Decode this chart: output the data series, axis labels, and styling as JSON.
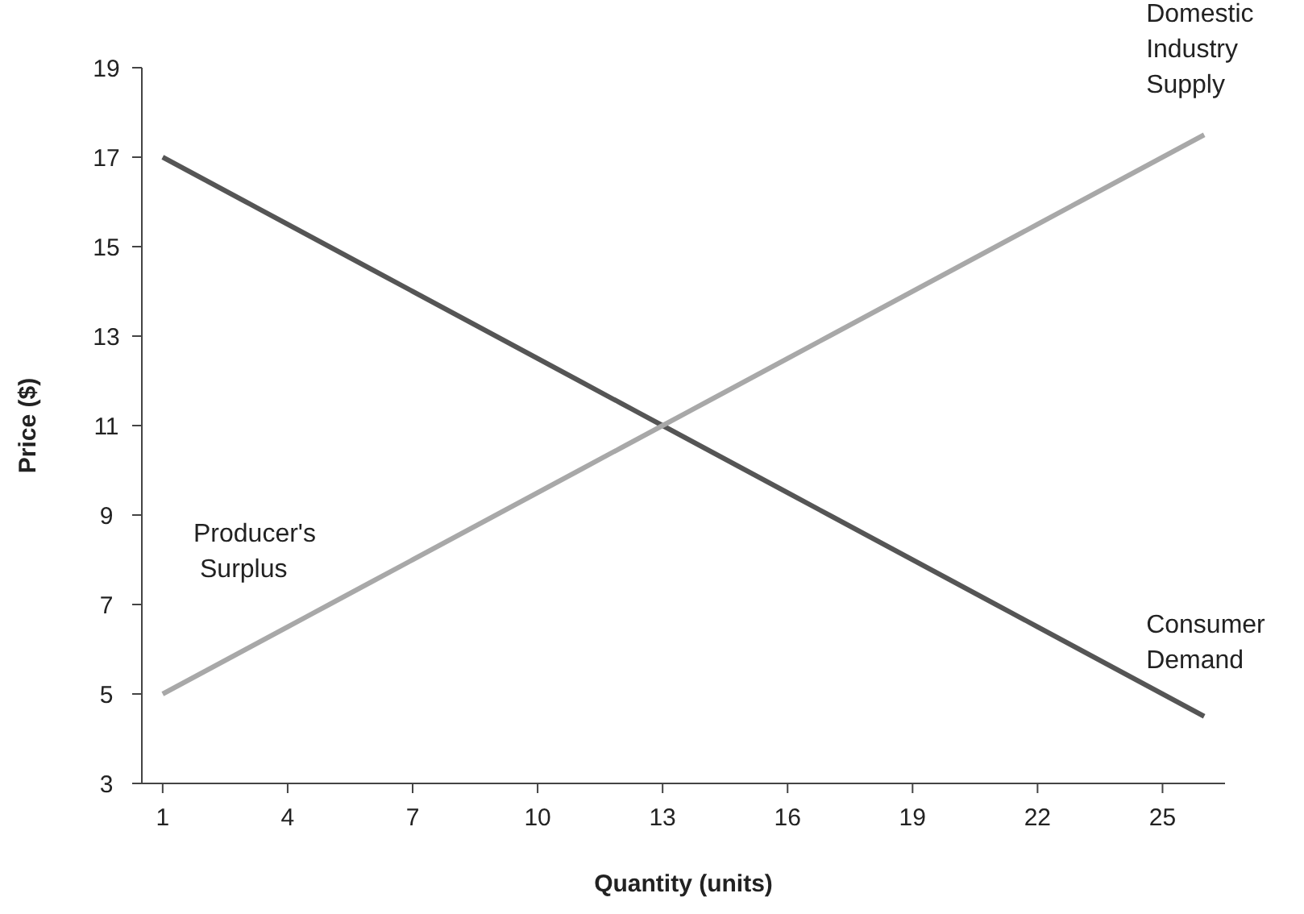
{
  "chart_data": {
    "type": "line",
    "xlabel": "Quantity (units)",
    "ylabel": "Price ($)",
    "categories": [
      "1",
      null,
      null,
      "4",
      null,
      null,
      "7",
      null,
      null,
      "10",
      null,
      null,
      "13",
      null,
      null,
      "16",
      null,
      null,
      "19",
      null,
      null,
      "22",
      null,
      null,
      "25",
      null
    ],
    "ylim": [
      3,
      19
    ],
    "yticks": [
      3,
      5,
      7,
      9,
      11,
      13,
      15,
      17,
      19
    ],
    "grid": false,
    "marker": "none",
    "line_style": "solid",
    "series": [
      {
        "name": "Consumer Demand",
        "color": "#555555",
        "values": [
          17,
          16.5,
          16,
          15.5,
          15,
          14.5,
          14,
          13.5,
          13,
          12.5,
          12,
          11.5,
          11,
          10.5,
          10,
          9.5,
          9,
          8.5,
          8,
          7.5,
          7,
          6.5,
          6,
          5.5,
          5,
          4.5
        ]
      },
      {
        "name": "Domestic Industry Supply",
        "color": "#a8a8a8",
        "values": [
          5,
          5.5,
          6,
          6.5,
          7,
          7.5,
          8,
          8.5,
          9,
          9.5,
          10,
          10.5,
          11,
          11.5,
          12,
          12.5,
          13,
          13.5,
          14,
          14.5,
          15,
          15.5,
          16,
          16.5,
          17,
          17.5
        ]
      }
    ],
    "annotations": [
      "Producer's Surplus"
    ]
  }
}
